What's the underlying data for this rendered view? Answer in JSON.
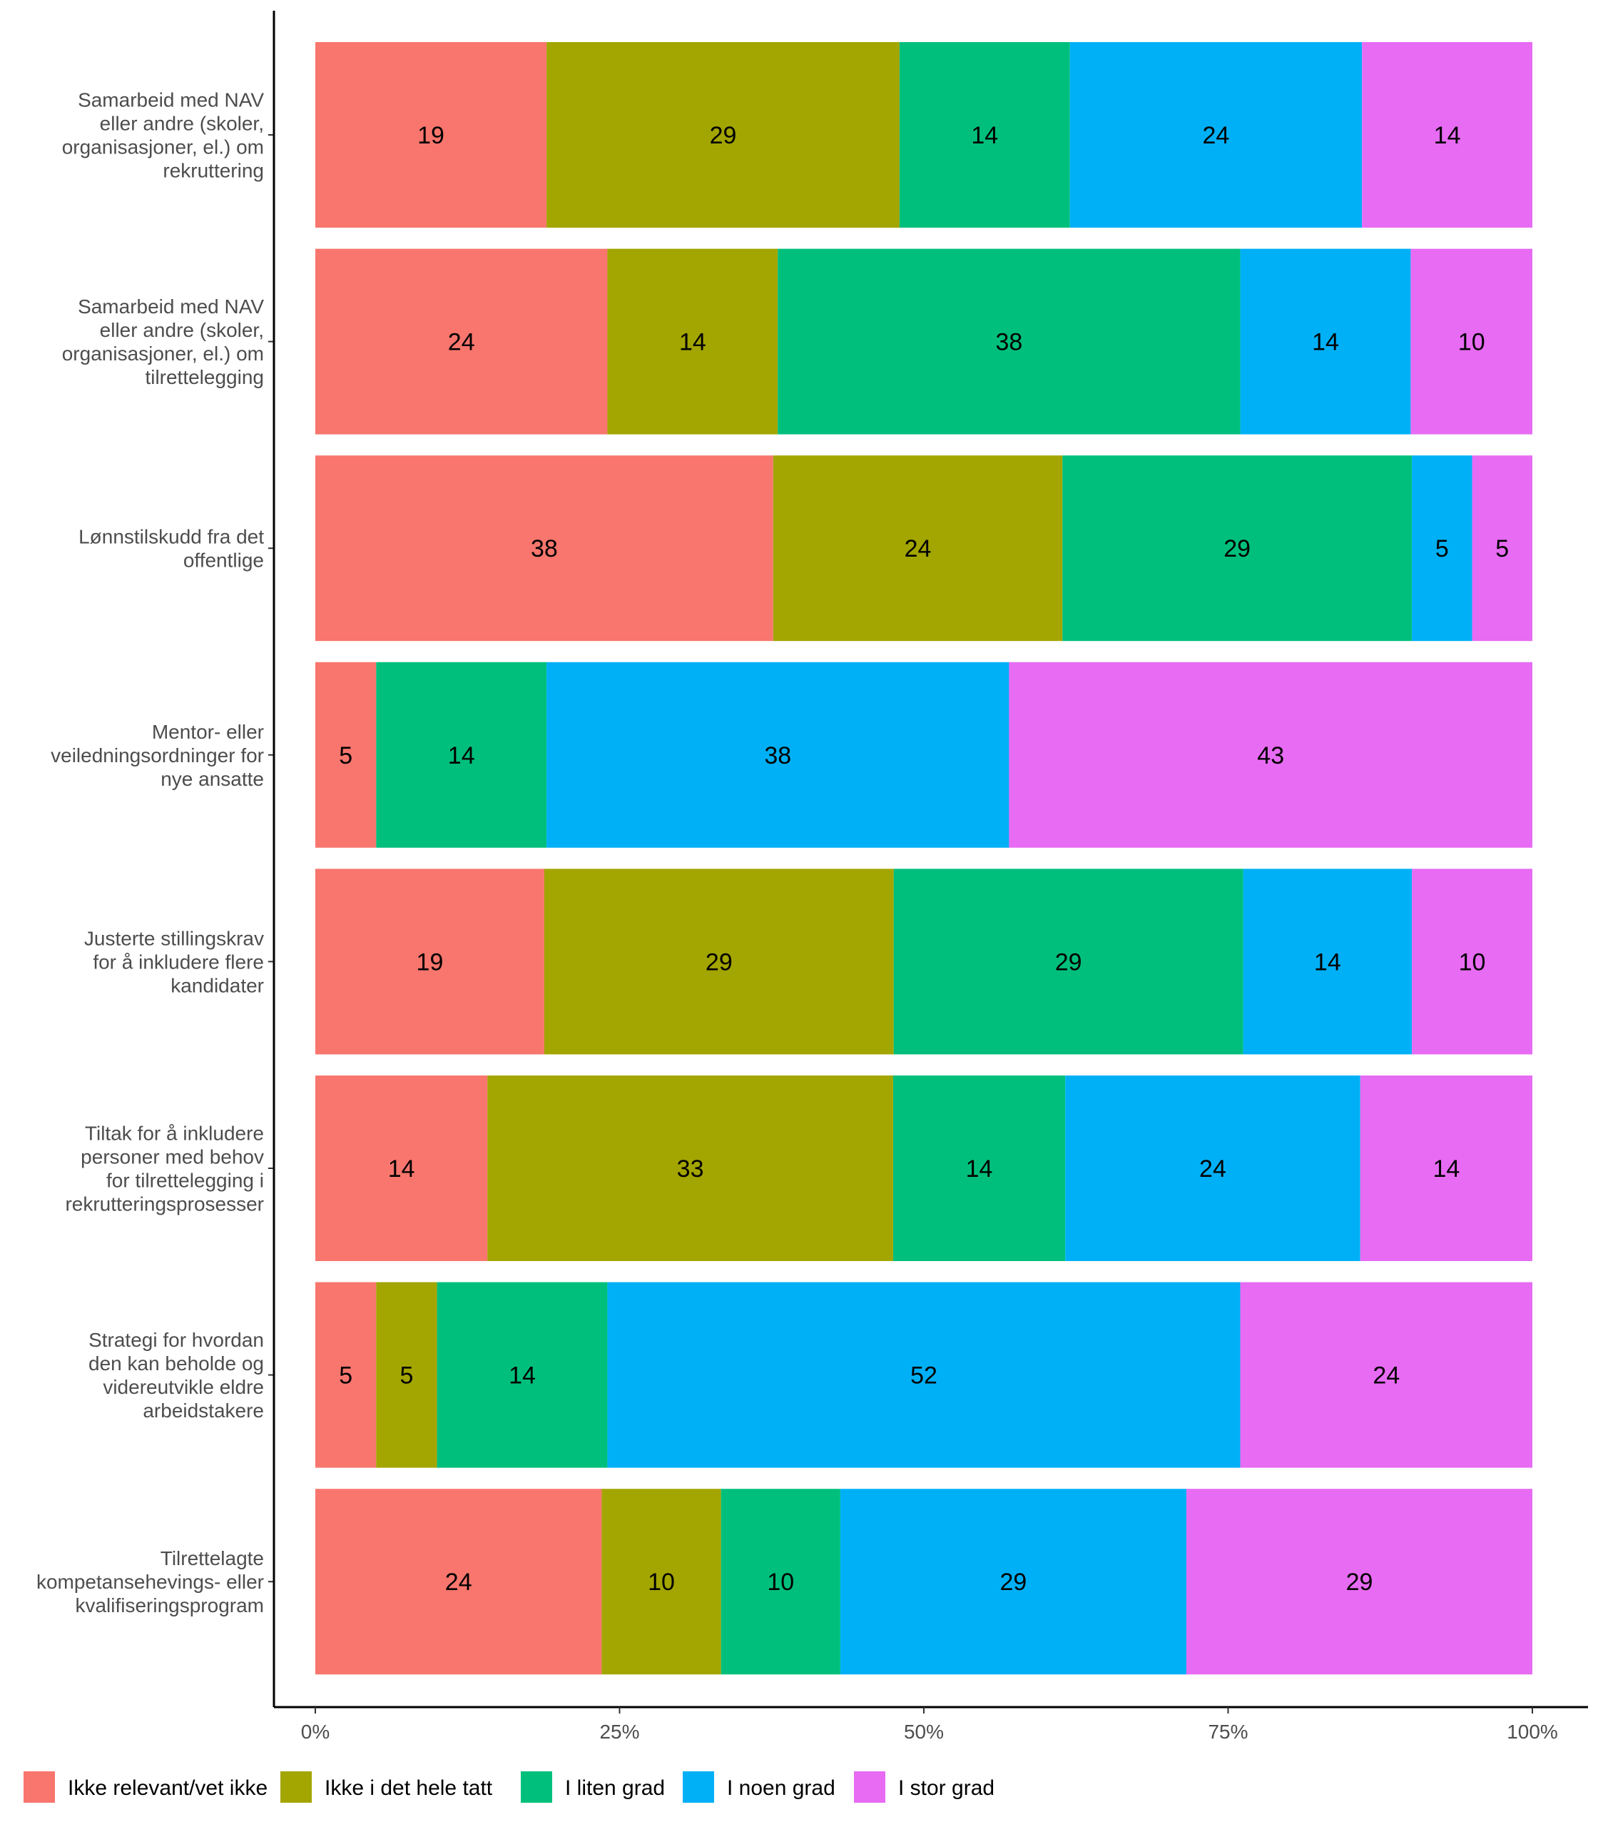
{
  "chart_data": {
    "type": "bar",
    "orientation": "horizontal",
    "stacked": true,
    "percent": true,
    "xlim": [
      0,
      100
    ],
    "x_ticks": [
      "0%",
      "25%",
      "50%",
      "75%",
      "100%"
    ],
    "categories": [
      [
        "Samarbeid med NAV",
        "eller andre (skoler,",
        "organisasjoner, el.) om",
        "rekruttering"
      ],
      [
        "Samarbeid med NAV",
        "eller andre (skoler,",
        "organisasjoner, el.) om",
        "tilrettelegging"
      ],
      [
        "Lønnstilskudd fra det",
        "offentlige"
      ],
      [
        "Mentor- eller",
        "veiledningsordninger for",
        "nye ansatte"
      ],
      [
        "Justerte stillingskrav",
        "for å inkludere flere",
        "kandidater"
      ],
      [
        "Tiltak for å inkludere",
        "personer med behov",
        "for tilrettelegging i",
        "rekrutteringsprosesser"
      ],
      [
        "Strategi for hvordan",
        "den kan beholde og",
        "videreutvikle eldre",
        "arbeidstakere"
      ],
      [
        "Tilrettelagte",
        "kompetansehevings- eller",
        "kvalifiseringsprogram"
      ]
    ],
    "series": [
      {
        "name": "Ikke relevant/vet ikke",
        "color": "#F8766D",
        "values": [
          19,
          24,
          38,
          5,
          19,
          14,
          5,
          24
        ]
      },
      {
        "name": "Ikke i det hele tatt",
        "color": "#A3A500",
        "values": [
          29,
          14,
          24,
          0,
          29,
          33,
          5,
          10
        ]
      },
      {
        "name": "I liten grad",
        "color": "#00BF7D",
        "values": [
          14,
          38,
          29,
          14,
          29,
          14,
          14,
          10
        ]
      },
      {
        "name": "I noen grad",
        "color": "#00B0F6",
        "values": [
          24,
          14,
          5,
          38,
          14,
          24,
          52,
          29
        ]
      },
      {
        "name": "I stor grad",
        "color": "#E76BF3",
        "values": [
          14,
          10,
          5,
          43,
          10,
          14,
          24,
          29
        ]
      }
    ],
    "legend_position": "bottom",
    "grid": false
  }
}
